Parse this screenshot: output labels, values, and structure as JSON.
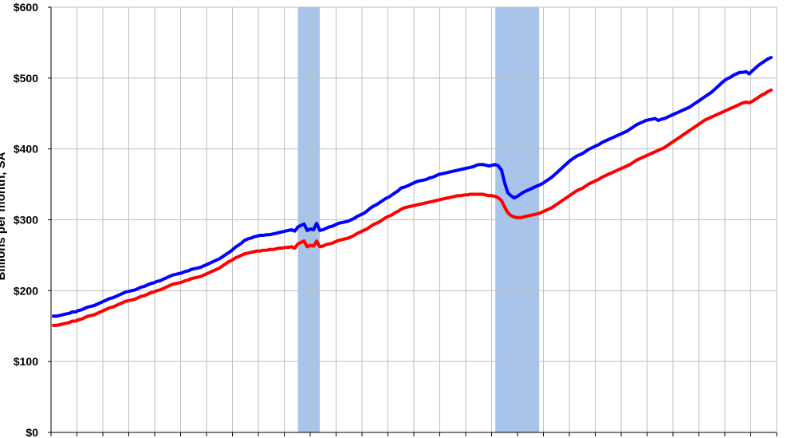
{
  "chart_data": {
    "type": "line",
    "title": "",
    "ylabel": "Billions per month, SA",
    "xlabel": "",
    "ylim": [
      0,
      600
    ],
    "y_ticks": [
      "$0",
      "$100",
      "$200",
      "$300",
      "$400",
      "$500",
      "$600"
    ],
    "y_tick_values": [
      0,
      100,
      200,
      300,
      400,
      500,
      600
    ],
    "x_gridlines": 28,
    "grid": true,
    "recession_bands": [
      {
        "start_index": 78,
        "end_index": 85
      },
      {
        "start_index": 141,
        "end_index": 155
      }
    ],
    "colors": {
      "series_blue": "#0000ff",
      "series_red": "#ff0000",
      "recession": "#a9c4ea",
      "grid": "#bfbfbf"
    },
    "series": [
      {
        "values": [
          164,
          164,
          165,
          166,
          167,
          168,
          170,
          170,
          172,
          173,
          175,
          177,
          178,
          179,
          181,
          183,
          185,
          187,
          189,
          190,
          192,
          194,
          196,
          198,
          199,
          200,
          201,
          203,
          205,
          206,
          208,
          210,
          211,
          213,
          214,
          216,
          218,
          220,
          222,
          223,
          224,
          225,
          227,
          228,
          230,
          231,
          232,
          233,
          235,
          237,
          239,
          241,
          243,
          245,
          248,
          251,
          254,
          257,
          261,
          264,
          267,
          271,
          273,
          274,
          276,
          277,
          278,
          278,
          279,
          279,
          280,
          281,
          282,
          283,
          284,
          285,
          286,
          284,
          290,
          292,
          294,
          285,
          287,
          286,
          295,
          285,
          286,
          288,
          290,
          291,
          293,
          295,
          296,
          297,
          298,
          300,
          302,
          305,
          307,
          309,
          312,
          316,
          319,
          321,
          324,
          327,
          330,
          332,
          335,
          338,
          341,
          345,
          346,
          348,
          350,
          352,
          354,
          355,
          356,
          357,
          359,
          360,
          362,
          364,
          365,
          366,
          367,
          368,
          369,
          370,
          371,
          372,
          373,
          374,
          375,
          377,
          378,
          378,
          377,
          376,
          377,
          378,
          376,
          370,
          352,
          338,
          334,
          331,
          333,
          336,
          339,
          341,
          343,
          345,
          347,
          349,
          351,
          354,
          357,
          360,
          364,
          368,
          372,
          376,
          380,
          384,
          387,
          390,
          392,
          394,
          397,
          400,
          402,
          404,
          406,
          409,
          411,
          413,
          415,
          417,
          419,
          421,
          423,
          425,
          428,
          431,
          434,
          436,
          438,
          440,
          441,
          442,
          443,
          440,
          442,
          443,
          445,
          447,
          449,
          451,
          453,
          455,
          457,
          459,
          462,
          465,
          468,
          471,
          474,
          477,
          480,
          484,
          488,
          492,
          496,
          499,
          501,
          504,
          506,
          508,
          508,
          509,
          506,
          510,
          514,
          518,
          521,
          524,
          527,
          529
        ]
      },
      {
        "values": [
          151,
          151,
          152,
          153,
          154,
          155,
          157,
          157,
          159,
          160,
          162,
          164,
          165,
          166,
          168,
          170,
          172,
          174,
          176,
          177,
          179,
          181,
          183,
          185,
          186,
          187,
          188,
          190,
          192,
          193,
          195,
          197,
          198,
          200,
          201,
          203,
          205,
          207,
          209,
          210,
          211,
          212,
          214,
          215,
          217,
          218,
          219,
          220,
          222,
          224,
          226,
          228,
          230,
          232,
          235,
          238,
          241,
          243,
          246,
          248,
          250,
          252,
          253,
          254,
          255,
          256,
          256,
          257,
          257,
          258,
          258,
          259,
          260,
          260,
          261,
          261,
          262,
          260,
          266,
          268,
          270,
          262,
          264,
          263,
          270,
          262,
          263,
          265,
          266,
          267,
          269,
          271,
          272,
          273,
          274,
          276,
          278,
          281,
          283,
          285,
          287,
          290,
          293,
          295,
          297,
          300,
          303,
          305,
          307,
          310,
          312,
          315,
          317,
          318,
          319,
          320,
          321,
          322,
          323,
          324,
          325,
          326,
          327,
          328,
          329,
          330,
          331,
          332,
          333,
          334,
          334,
          335,
          335,
          336,
          336,
          336,
          336,
          336,
          335,
          334,
          334,
          333,
          331,
          327,
          318,
          310,
          306,
          304,
          303,
          303,
          304,
          305,
          306,
          307,
          308,
          309,
          311,
          313,
          315,
          317,
          320,
          323,
          326,
          329,
          332,
          335,
          338,
          341,
          343,
          345,
          348,
          351,
          353,
          355,
          357,
          360,
          362,
          364,
          366,
          368,
          370,
          372,
          374,
          376,
          378,
          381,
          384,
          386,
          388,
          390,
          392,
          394,
          396,
          398,
          400,
          402,
          405,
          408,
          411,
          414,
          417,
          420,
          423,
          426,
          429,
          432,
          435,
          438,
          441,
          443,
          445,
          447,
          449,
          451,
          453,
          455,
          457,
          459,
          461,
          463,
          465,
          466,
          465,
          467,
          470,
          473,
          476,
          478,
          481,
          483
        ]
      }
    ]
  }
}
